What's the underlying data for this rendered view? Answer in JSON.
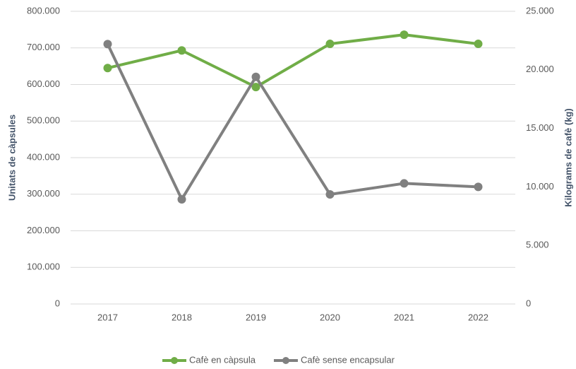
{
  "chart_data": {
    "type": "line",
    "categories": [
      "2017",
      "2018",
      "2019",
      "2020",
      "2021",
      "2022"
    ],
    "ylabel": "Unitats de càpsules",
    "y2label": "Kilograms de cafè (kg)",
    "ylim": [
      0,
      800000
    ],
    "yticks": [
      0,
      {
        "value": 100000,
        "label": "100.000"
      },
      {
        "value": 200000,
        "label": "200.000"
      },
      {
        "value": 300000,
        "label": "300.000"
      },
      {
        "value": 400000,
        "label": "400.000"
      },
      {
        "value": 500000,
        "label": "500.000"
      },
      {
        "value": 600000,
        "label": "600.000"
      },
      {
        "value": 700000,
        "label": "700.000"
      },
      {
        "value": 800000,
        "label": "800.000"
      }
    ],
    "y2lim": [
      0,
      25000
    ],
    "y2ticks": [
      0,
      {
        "value": 5000,
        "label": "5.000"
      },
      {
        "value": 10000,
        "label": "10.000"
      },
      {
        "value": 15000,
        "label": "15.000"
      },
      {
        "value": 20000,
        "label": "20.000"
      },
      {
        "value": 25000,
        "label": "25.000"
      }
    ],
    "grid": true,
    "legend": "bottom",
    "series": [
      {
        "name": "Cafè en càpsula",
        "color": "#70ad47",
        "axis": "y",
        "values": [
          645000,
          693000,
          593000,
          711000,
          736000,
          711000
        ]
      },
      {
        "name": "Cafè sense encapsular",
        "color": "#808080",
        "axis": "y2",
        "values": [
          22200,
          8940,
          19400,
          9360,
          10300,
          10000
        ]
      }
    ]
  }
}
